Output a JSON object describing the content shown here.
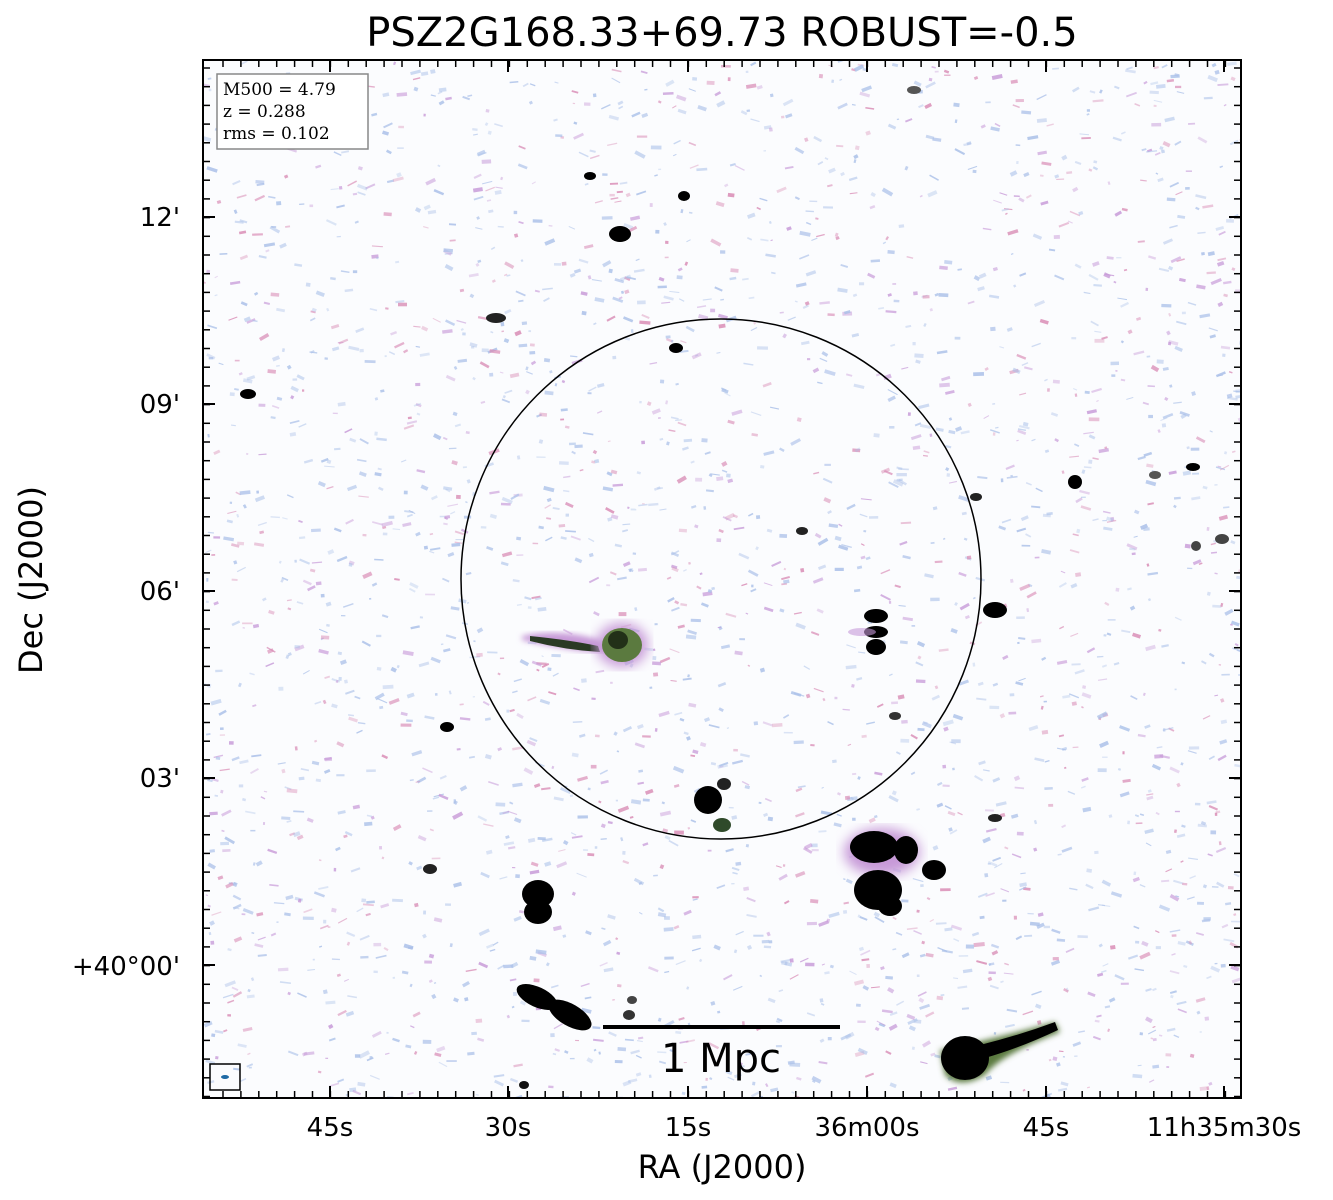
{
  "figure": {
    "title": "PSZ2G168.33+69.73 ROBUST=-0.5",
    "xlabel": "RA (J2000)",
    "ylabel": "Dec (J2000)",
    "x_ticks": [
      "45s",
      "30s",
      "15s",
      "36m00s",
      "45s",
      "11h35m30s"
    ],
    "y_ticks": [
      "12'",
      "09'",
      "06'",
      "03'",
      "+40°00'"
    ],
    "info": {
      "m500": "M500 = 4.79",
      "z": "z = 0.288",
      "rms": "rms = 0.102"
    },
    "scalebar_label": "1 Mpc",
    "colors": {
      "background": "#ffffff",
      "noise_blue": "#a9bfe8",
      "noise_purple": "#c79ad8",
      "noise_pink": "#d88ab4",
      "source_core": "#000000",
      "source_green": "#4f6b3a"
    }
  }
}
